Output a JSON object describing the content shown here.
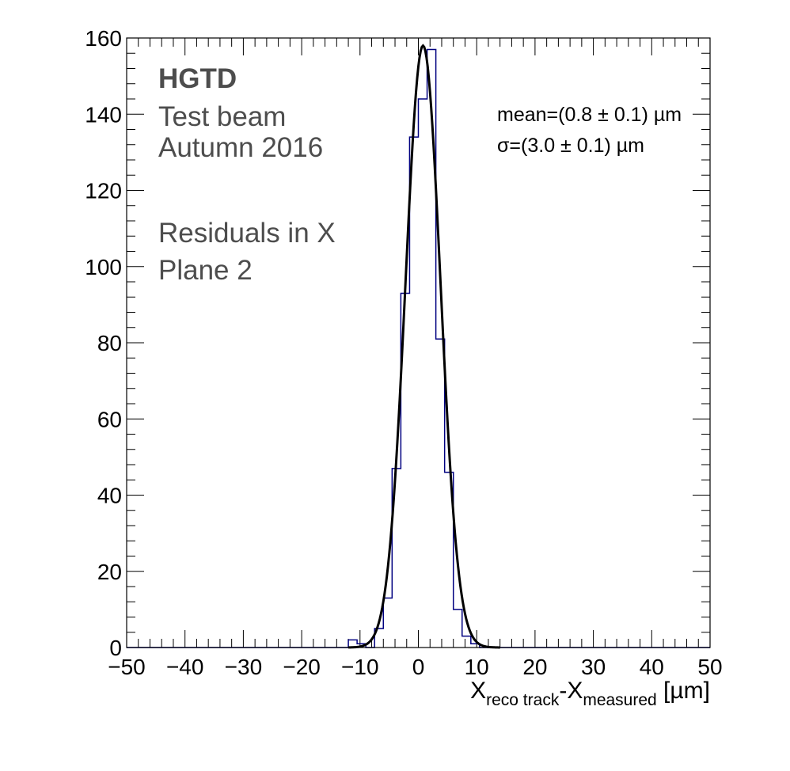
{
  "chart_data": {
    "type": "histogram",
    "annotations": {
      "experiment": "HGTD",
      "line1": "Test beam",
      "line2": "Autumn 2016",
      "line3": "Residuals in X",
      "line4": "Plane 2"
    },
    "stats": {
      "mean_text": "mean=(0.8 ± 0.1) µm",
      "sigma_text": "σ=(3.0 ± 0.1) µm"
    },
    "xlabel": {
      "main1": "X",
      "sub1": "reco track",
      "main2": "-X",
      "sub2": "measured",
      "unit": " [µm]"
    },
    "xlim": [
      -50,
      50
    ],
    "ylim": [
      0,
      160
    ],
    "x_ticks": [
      "−50",
      "−40",
      "−30",
      "−20",
      "−10",
      "0",
      "10",
      "20",
      "30",
      "40",
      "50"
    ],
    "y_ticks": [
      "0",
      "20",
      "40",
      "60",
      "80",
      "100",
      "120",
      "140",
      "160"
    ],
    "bin_width": 1.5,
    "bins": [
      {
        "x0": -12,
        "x1": -10.5,
        "y": 2
      },
      {
        "x0": -10.5,
        "x1": -9,
        "y": 1
      },
      {
        "x0": -9,
        "x1": -7.5,
        "y": 0
      },
      {
        "x0": -7.5,
        "x1": -6,
        "y": 5
      },
      {
        "x0": -6,
        "x1": -4.5,
        "y": 13
      },
      {
        "x0": -4.5,
        "x1": -3,
        "y": 47
      },
      {
        "x0": -3,
        "x1": -1.5,
        "y": 93
      },
      {
        "x0": -1.5,
        "x1": 0,
        "y": 134
      },
      {
        "x0": 0,
        "x1": 1.5,
        "y": 144
      },
      {
        "x0": 1.5,
        "x1": 3,
        "y": 157
      },
      {
        "x0": 3,
        "x1": 4.5,
        "y": 81
      },
      {
        "x0": 4.5,
        "x1": 6,
        "y": 46
      },
      {
        "x0": 6,
        "x1": 7.5,
        "y": 10
      },
      {
        "x0": 7.5,
        "x1": 9,
        "y": 3
      },
      {
        "x0": 9,
        "x1": 10.5,
        "y": 1
      },
      {
        "x0": 10.5,
        "x1": 12,
        "y": 0
      }
    ],
    "fit": {
      "mean": 0.8,
      "sigma": 3.0,
      "amplitude": 158
    },
    "histogram_color": "#000080",
    "fit_color": "#000000"
  }
}
